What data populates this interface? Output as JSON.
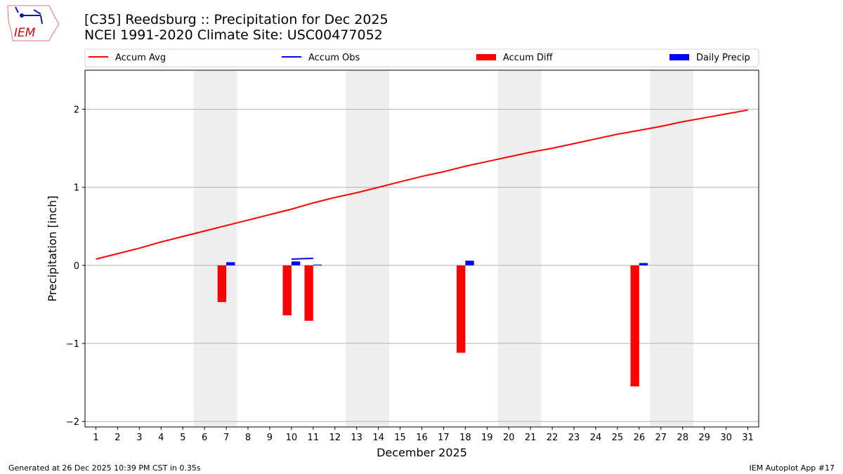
{
  "header": {
    "title": "[C35] Reedsburg :: Precipitation for Dec 2025",
    "subtitle": "NCEI 1991-2020 Climate Site: USC00477052",
    "logo_text": "IEM"
  },
  "footer": {
    "left": "Generated at 26 Dec 2025 10:39 PM CST in 0.35s",
    "right": "IEM Autoplot App #17"
  },
  "chart_data": {
    "type": "bar",
    "xlabel": "December 2025",
    "ylabel": "Precipitation [inch]",
    "xlim": [
      0.5,
      31.5
    ],
    "ylim": [
      -2.07,
      2.5
    ],
    "yticks": [
      -2,
      -1,
      0,
      1,
      2
    ],
    "ytick_labels": [
      "−2",
      "−1",
      "0",
      "1",
      "2"
    ],
    "x": [
      1,
      2,
      3,
      4,
      5,
      6,
      7,
      8,
      9,
      10,
      11,
      12,
      13,
      14,
      15,
      16,
      17,
      18,
      19,
      20,
      21,
      22,
      23,
      24,
      25,
      26,
      27,
      28,
      29,
      30,
      31
    ],
    "grid": "horizontal",
    "legend_placement": "top",
    "weekend_shading": [
      [
        5.5,
        7.5
      ],
      [
        12.5,
        14.5
      ],
      [
        19.5,
        21.5
      ],
      [
        26.5,
        28.5
      ]
    ],
    "series": [
      {
        "name": "Accum Avg",
        "type": "line",
        "color": "#ff0000",
        "values": [
          0.08,
          0.15,
          0.22,
          0.3,
          0.37,
          0.44,
          0.51,
          0.58,
          0.65,
          0.72,
          0.8,
          0.87,
          0.93,
          1.0,
          1.07,
          1.14,
          1.2,
          1.27,
          1.33,
          1.39,
          1.45,
          1.5,
          1.56,
          1.62,
          1.68,
          1.73,
          1.78,
          1.84,
          1.89,
          1.94,
          1.99
        ]
      },
      {
        "name": "Accum Obs",
        "type": "line",
        "color": "#0000ff",
        "points": [
          [
            10,
            0.08
          ],
          [
            11,
            0.09
          ]
        ]
      },
      {
        "name": "Accum Diff",
        "type": "bar",
        "color": "#ff0000",
        "points": [
          [
            7,
            -0.47
          ],
          [
            10,
            -0.64
          ],
          [
            11,
            -0.71
          ],
          [
            18,
            -1.12
          ],
          [
            26,
            -1.55
          ]
        ]
      },
      {
        "name": "Daily Precip",
        "type": "bar",
        "color": "#0000ff",
        "points": [
          [
            7,
            0.04
          ],
          [
            10,
            0.05
          ],
          [
            11,
            0.01
          ],
          [
            18,
            0.06
          ],
          [
            26,
            0.03
          ]
        ]
      }
    ]
  }
}
